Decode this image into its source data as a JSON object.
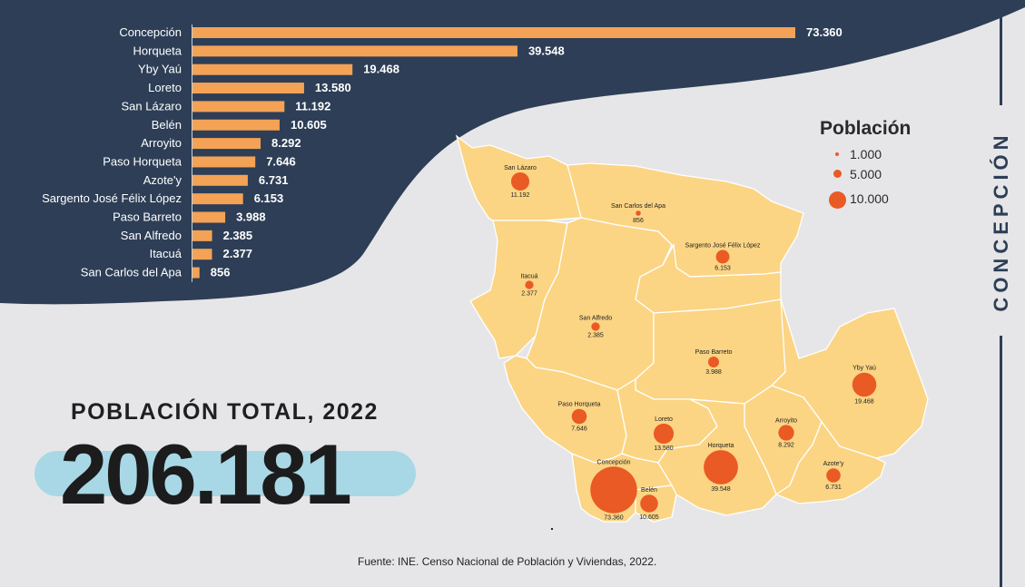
{
  "department": "CONCEPCIÓN",
  "total": {
    "title": "POBLACIÓN TOTAL, 2022",
    "value": "206.181"
  },
  "legend": {
    "title": "Población",
    "items": [
      "1.000",
      "5.000",
      "10.000"
    ],
    "sizes": [
      1000,
      5000,
      10000
    ]
  },
  "source": "Fuente: INE. Censo Nacional de Población y Viviendas, 2022.",
  "colors": {
    "banner": "#2d3e56",
    "bar": "#f4a255",
    "map_fill": "#fbd584",
    "bubble": "#ea5a24",
    "pill": "#a8d8e6"
  },
  "chart_data": {
    "type": "bar",
    "orientation": "horizontal",
    "categories": [
      "Concepción",
      "Horqueta",
      "Yby Yaú",
      "Loreto",
      "San Lázaro",
      "Belén",
      "Arroyito",
      "Paso Horqueta",
      "Azote'y",
      "Sargento José Félix López",
      "Paso Barreto",
      "San Alfredo",
      "Itacuá",
      "San Carlos del Apa"
    ],
    "values": [
      73360,
      39548,
      19468,
      13580,
      11192,
      10605,
      8292,
      7646,
      6731,
      6153,
      3988,
      2385,
      2377,
      856
    ],
    "value_labels": [
      "73.360",
      "39.548",
      "19.468",
      "13.580",
      "11.192",
      "10.605",
      "8.292",
      "7.646",
      "6.731",
      "6.153",
      "3.988",
      "2.385",
      "2.377",
      "856"
    ],
    "xlim": [
      0,
      73360
    ]
  },
  "map": {
    "labels": [
      {
        "name": "San Lázaro",
        "value": "11.192",
        "pop": 11192
      },
      {
        "name": "San Carlos del Apa",
        "value": "856",
        "pop": 856
      },
      {
        "name": "Sargento José Félix López",
        "value": "6.153",
        "pop": 6153
      },
      {
        "name": "Itacuá",
        "value": "2.377",
        "pop": 2377
      },
      {
        "name": "San Alfredo",
        "value": "2.385",
        "pop": 2385
      },
      {
        "name": "Paso Barreto",
        "value": "3.988",
        "pop": 3988
      },
      {
        "name": "Yby Yaú",
        "value": "19.468",
        "pop": 19468
      },
      {
        "name": "Paso Horqueta",
        "value": "7.646",
        "pop": 7646
      },
      {
        "name": "Loreto",
        "value": "13.580",
        "pop": 13580
      },
      {
        "name": "Arroyito",
        "value": "8.292",
        "pop": 8292
      },
      {
        "name": "Horqueta",
        "value": "39.548",
        "pop": 39548
      },
      {
        "name": "Azote'y",
        "value": "6.731",
        "pop": 6731
      },
      {
        "name": "Concepción",
        "value": "73.360",
        "pop": 73360
      },
      {
        "name": "Belén",
        "value": "10.605",
        "pop": 10605
      }
    ]
  }
}
